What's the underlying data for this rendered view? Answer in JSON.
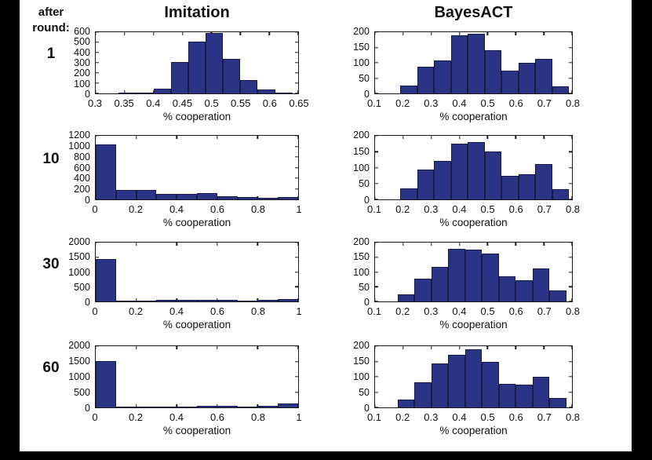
{
  "page": {
    "row_header": [
      "after",
      "round:"
    ],
    "row_labels": [
      "1",
      "10",
      "30",
      "60"
    ],
    "column_titles": [
      "Imitation",
      "BayesACT"
    ],
    "xlabel": "% cooperation",
    "colors": {
      "bar_fill": "#2b3484",
      "bar_edge": "#1a1a48",
      "axis": "#1a1a1a",
      "figure_background": "#ffffff",
      "frame": "#000000"
    }
  },
  "chart_data": [
    {
      "type": "bar",
      "title": "Imitation",
      "after_round": "1",
      "xlabel": "% cooperation",
      "xlim": [
        0.3,
        0.65
      ],
      "ylim": [
        0,
        600
      ],
      "xticks": [
        0.3,
        0.35,
        0.4,
        0.45,
        0.5,
        0.55,
        0.6,
        0.65
      ],
      "yticks": [
        0,
        100,
        200,
        300,
        400,
        500,
        600
      ],
      "bins": {
        "start": 0.34,
        "width": 0.03
      },
      "values": [
        5,
        10,
        50,
        305,
        510,
        590,
        340,
        130,
        40,
        5
      ]
    },
    {
      "type": "bar",
      "title": "BayesACT",
      "after_round": "1",
      "xlabel": "% cooperation",
      "xlim": [
        0.1,
        0.8
      ],
      "ylim": [
        0,
        200
      ],
      "xticks": [
        0.1,
        0.2,
        0.3,
        0.4,
        0.5,
        0.6,
        0.7,
        0.8
      ],
      "yticks": [
        0,
        50,
        100,
        150,
        200
      ],
      "bins": {
        "start": 0.19,
        "width": 0.06
      },
      "values": [
        25,
        87,
        107,
        190,
        195,
        140,
        75,
        100,
        112,
        22
      ]
    },
    {
      "type": "bar",
      "title": "Imitation",
      "after_round": "10",
      "xlabel": "% cooperation",
      "xlim": [
        0,
        1
      ],
      "ylim": [
        0,
        1200
      ],
      "xticks": [
        0,
        0.2,
        0.4,
        0.6,
        0.8,
        1
      ],
      "yticks": [
        0,
        200,
        400,
        600,
        800,
        1000,
        1200
      ],
      "bins": {
        "start": 0,
        "width": 0.1
      },
      "values": [
        1030,
        185,
        180,
        110,
        105,
        115,
        65,
        45,
        35,
        40
      ]
    },
    {
      "type": "bar",
      "title": "BayesACT",
      "after_round": "10",
      "xlabel": "% cooperation",
      "xlim": [
        0.1,
        0.8
      ],
      "ylim": [
        0,
        200
      ],
      "xticks": [
        0.1,
        0.2,
        0.3,
        0.4,
        0.5,
        0.6,
        0.7,
        0.8
      ],
      "yticks": [
        0,
        50,
        100,
        150,
        200
      ],
      "bins": {
        "start": 0.19,
        "width": 0.06
      },
      "values": [
        35,
        93,
        120,
        175,
        180,
        150,
        73,
        80,
        110,
        32
      ]
    },
    {
      "type": "bar",
      "title": "Imitation",
      "after_round": "30",
      "xlabel": "% cooperation",
      "xlim": [
        0,
        1
      ],
      "ylim": [
        0,
        2000
      ],
      "xticks": [
        0,
        0.2,
        0.4,
        0.6,
        0.8,
        1
      ],
      "yticks": [
        0,
        500,
        1000,
        1500,
        2000
      ],
      "bins": {
        "start": 0,
        "width": 0.1
      },
      "values": [
        1450,
        40,
        40,
        45,
        50,
        60,
        55,
        40,
        55,
        90
      ]
    },
    {
      "type": "bar",
      "title": "BayesACT",
      "after_round": "30",
      "xlabel": "% cooperation",
      "xlim": [
        0.1,
        0.8
      ],
      "ylim": [
        0,
        200
      ],
      "xticks": [
        0.1,
        0.2,
        0.3,
        0.4,
        0.5,
        0.6,
        0.7,
        0.8
      ],
      "yticks": [
        0,
        50,
        100,
        150,
        200
      ],
      "bins": {
        "start": 0.18,
        "width": 0.06
      },
      "values": [
        23,
        77,
        118,
        180,
        175,
        163,
        85,
        73,
        112,
        38
      ]
    },
    {
      "type": "bar",
      "title": "Imitation",
      "after_round": "60",
      "xlabel": "% cooperation",
      "xlim": [
        0,
        1
      ],
      "ylim": [
        0,
        2000
      ],
      "xticks": [
        0,
        0.2,
        0.4,
        0.6,
        0.8,
        1
      ],
      "yticks": [
        0,
        500,
        1000,
        1500,
        2000
      ],
      "bins": {
        "start": 0,
        "width": 0.1
      },
      "values": [
        1520,
        20,
        20,
        35,
        30,
        45,
        40,
        30,
        55,
        130
      ]
    },
    {
      "type": "bar",
      "title": "BayesACT",
      "after_round": "60",
      "xlabel": "% cooperation",
      "xlim": [
        0.1,
        0.8
      ],
      "ylim": [
        0,
        200
      ],
      "xticks": [
        0.1,
        0.2,
        0.3,
        0.4,
        0.5,
        0.6,
        0.7,
        0.8
      ],
      "yticks": [
        0,
        50,
        100,
        150,
        200
      ],
      "bins": {
        "start": 0.18,
        "width": 0.06
      },
      "values": [
        25,
        82,
        143,
        172,
        190,
        148,
        78,
        75,
        100,
        32
      ]
    }
  ]
}
